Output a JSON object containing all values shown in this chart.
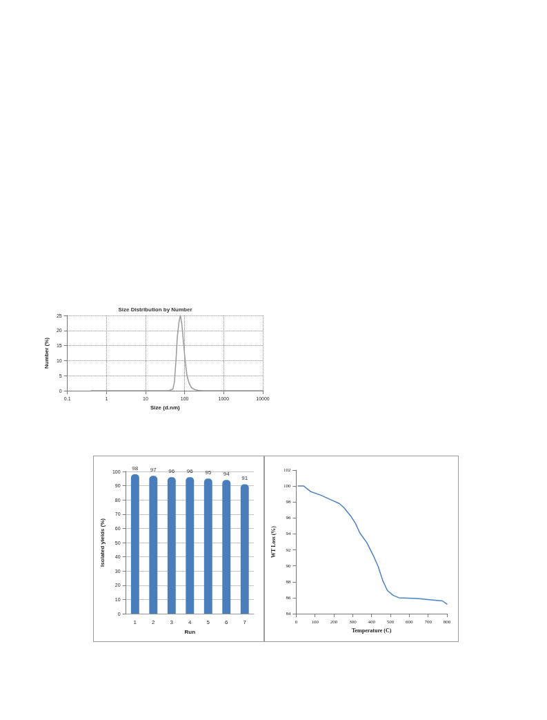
{
  "chart_data": [
    {
      "type": "line",
      "title": "Size Distribution by Number",
      "xlabel": "Size (d.nm)",
      "ylabel": "Number (%)",
      "log": "x",
      "grid": true,
      "line_style": "solid",
      "xlim": [
        0.1,
        10000
      ],
      "xticks": [
        0.1,
        1,
        10,
        100,
        1000,
        10000
      ],
      "ylim": [
        0,
        25
      ],
      "yticks": [
        0,
        5,
        10,
        15,
        20,
        25
      ],
      "x": [
        0.4,
        40,
        50,
        55,
        60,
        65,
        72,
        78,
        85,
        95,
        105,
        115,
        130,
        150,
        180,
        220,
        300,
        10000
      ],
      "series": [
        {
          "color": "#999999",
          "values": [
            0,
            0,
            0.5,
            3,
            10,
            18,
            23,
            25,
            22,
            15,
            9,
            5,
            2.5,
            1,
            0.4,
            0.1,
            0,
            0
          ]
        }
      ]
    },
    {
      "type": "bar",
      "xlabel": "Run",
      "ylabel": "Isolated yields (%)",
      "grid": "y",
      "data_labels": true,
      "categories": [
        "1",
        "2",
        "3",
        "4",
        "5",
        "6",
        "7"
      ],
      "ylim": [
        0,
        100
      ],
      "yticks": [
        0,
        10,
        20,
        30,
        40,
        50,
        60,
        70,
        80,
        90,
        100
      ],
      "series": [
        {
          "color": "#4a7ebb",
          "values": [
            98,
            97,
            96,
            96,
            95,
            94,
            91
          ]
        }
      ]
    },
    {
      "type": "line",
      "xlabel": "Temperature (C)",
      "ylabel": "WT Loss (%)",
      "line_style": "solid",
      "xlim": [
        0,
        800
      ],
      "xticks": [
        0,
        100,
        200,
        300,
        400,
        500,
        600,
        700,
        800
      ],
      "ylim": [
        84,
        102
      ],
      "yticks": [
        84,
        86,
        88,
        90,
        92,
        94,
        96,
        98,
        100,
        102
      ],
      "x": [
        10,
        40,
        77,
        131,
        192,
        229,
        253,
        289,
        314,
        338,
        375,
        411,
        435,
        460,
        484,
        514,
        545,
        642,
        727,
        776,
        800
      ],
      "series": [
        {
          "color": "#4a7fc1",
          "values": [
            100,
            100,
            99.3,
            98.85,
            98.2,
            97.8,
            97.3,
            96.25,
            95.35,
            94.1,
            92.9,
            91.2,
            89.9,
            88.1,
            86.9,
            86.3,
            86.0,
            85.9,
            85.7,
            85.6,
            85.2
          ]
        }
      ]
    }
  ]
}
